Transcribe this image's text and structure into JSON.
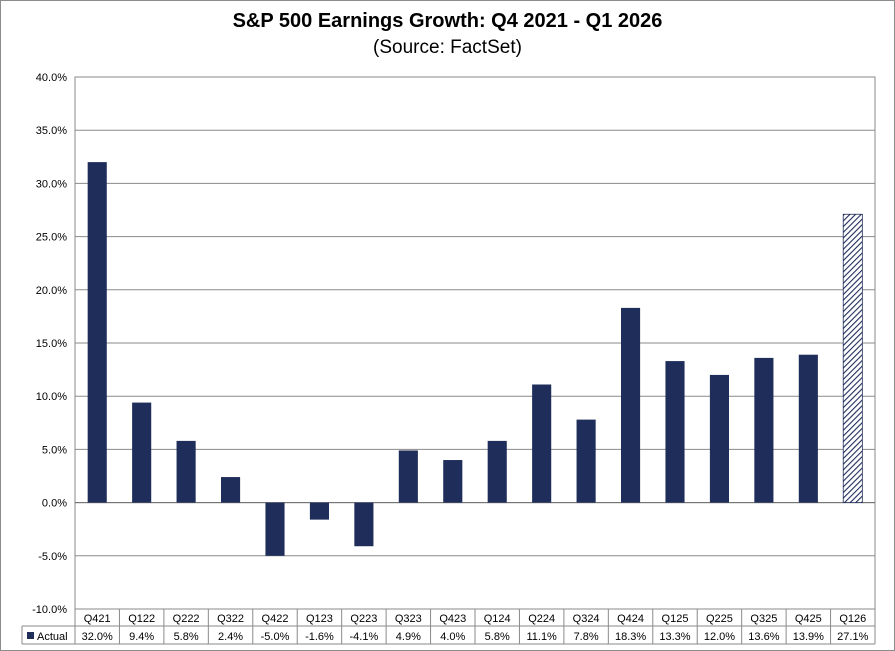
{
  "chart_data": {
    "type": "bar",
    "title": "S&P 500 Earnings Growth: Q4 2021 - Q1 2026",
    "subtitle": "(Source: FactSet)",
    "categories": [
      "Q421",
      "Q122",
      "Q222",
      "Q322",
      "Q422",
      "Q123",
      "Q223",
      "Q323",
      "Q423",
      "Q124",
      "Q224",
      "Q324",
      "Q424",
      "Q125",
      "Q225",
      "Q325",
      "Q425",
      "Q126"
    ],
    "series": [
      {
        "name": "Actual",
        "values": [
          32.0,
          9.4,
          5.8,
          2.4,
          -5.0,
          -1.6,
          -4.1,
          4.9,
          4.0,
          5.8,
          11.1,
          7.8,
          18.3,
          13.3,
          12.0,
          13.6,
          13.9,
          27.1
        ],
        "labels": [
          "32.0%",
          "9.4%",
          "5.8%",
          "2.4%",
          "-5.0%",
          "-1.6%",
          "-4.1%",
          "4.9%",
          "4.0%",
          "5.8%",
          "11.1%",
          "7.8%",
          "18.3%",
          "13.3%",
          "12.0%",
          "13.6%",
          "13.9%",
          "27.1%"
        ],
        "color": "#1f2d5a",
        "hatched_categories": [
          "Q126"
        ]
      }
    ],
    "yticks": [
      "40.0%",
      "35.0%",
      "30.0%",
      "25.0%",
      "20.0%",
      "15.0%",
      "10.0%",
      "5.0%",
      "0.0%",
      "-5.0%",
      "-10.0%"
    ],
    "ylim": [
      -10,
      40
    ],
    "grid": true,
    "legend": "data-table"
  }
}
